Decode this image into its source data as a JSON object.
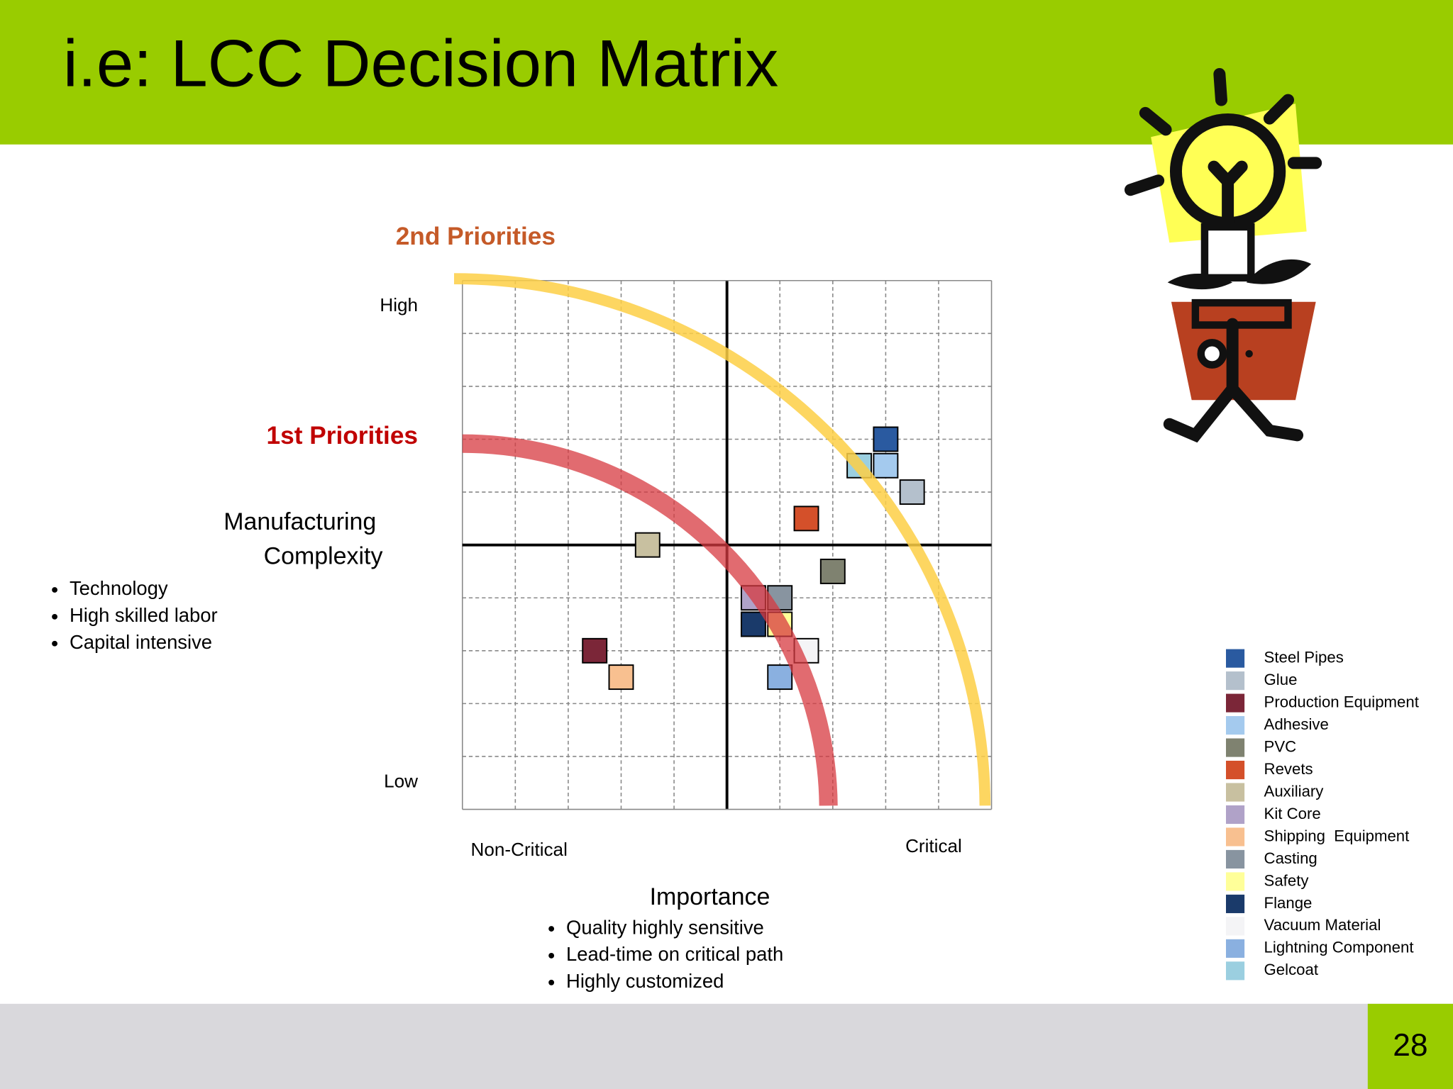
{
  "header": {
    "title": "i.e: LCC Decision Matrix"
  },
  "chart_data": {
    "type": "scatter",
    "second_priorities": "2nd Priorities",
    "first_priorities": "1st Priorities",
    "y_high": "High",
    "y_low": "Low",
    "x_low": "Non-Critical",
    "x_high": "Critical",
    "y_label": [
      "Manufacturing",
      "Complexity"
    ],
    "y_bullets": [
      "Technology",
      "High skilled labor",
      "Capital intensive"
    ],
    "x_label": "Importance",
    "x_bullets": [
      "Quality highly sensitive",
      "Lead-time on critical path",
      "Highly customized"
    ],
    "xlim": [
      0,
      10
    ],
    "ylim": [
      0,
      10
    ],
    "xticks": [
      0,
      1,
      2,
      3,
      4,
      5,
      6,
      7,
      8,
      9,
      10
    ],
    "yticks": [
      0,
      1,
      2,
      3,
      4,
      5,
      6,
      7,
      8,
      9,
      10
    ],
    "grid": true,
    "series": [
      {
        "name": "Steel Pipes",
        "color": "#2a5aa0",
        "x": [
          8.0
        ],
        "values": [
          7.0
        ]
      },
      {
        "name": "Glue",
        "color": "#b4c0cc",
        "x": [
          8.5
        ],
        "values": [
          6.0
        ]
      },
      {
        "name": "Production Equipment",
        "color": "#7b2638",
        "x": [
          2.5
        ],
        "values": [
          3.0
        ]
      },
      {
        "name": "Adhesive",
        "color": "#a4caee",
        "x": [
          8.0
        ],
        "values": [
          6.5
        ]
      },
      {
        "name": "PVC",
        "color": "#7f8270",
        "x": [
          7.0
        ],
        "values": [
          4.5
        ]
      },
      {
        "name": "Revets",
        "color": "#d4502a",
        "x": [
          6.5
        ],
        "values": [
          5.5
        ]
      },
      {
        "name": "Auxiliary",
        "color": "#c8c0a0",
        "x": [
          3.5
        ],
        "values": [
          5.0
        ]
      },
      {
        "name": "Kit Core",
        "color": "#b0a2c8",
        "x": [
          5.5
        ],
        "values": [
          4.0
        ]
      },
      {
        "name": "Shipping  Equipment",
        "color": "#f8c090",
        "x": [
          3.0
        ],
        "values": [
          2.5
        ]
      },
      {
        "name": "Casting",
        "color": "#8894a0",
        "x": [
          6.0
        ],
        "values": [
          4.0
        ]
      },
      {
        "name": "Safety",
        "color": "#ffff99",
        "x": [
          6.0
        ],
        "values": [
          3.5
        ]
      },
      {
        "name": "Flange",
        "color": "#1a3a6a",
        "x": [
          5.5
        ],
        "values": [
          3.5
        ]
      },
      {
        "name": "Vacuum Material",
        "color": "#f4f4f6",
        "x": [
          6.5
        ],
        "values": [
          3.0
        ]
      },
      {
        "name": "Lightning Component",
        "color": "#8ab0e0",
        "x": [
          6.0
        ],
        "values": [
          2.5
        ]
      },
      {
        "name": "Gelcoat",
        "color": "#9bcfe0",
        "x": [
          7.5
        ],
        "values": [
          6.5
        ]
      }
    ]
  },
  "footer": {
    "page": "28"
  }
}
